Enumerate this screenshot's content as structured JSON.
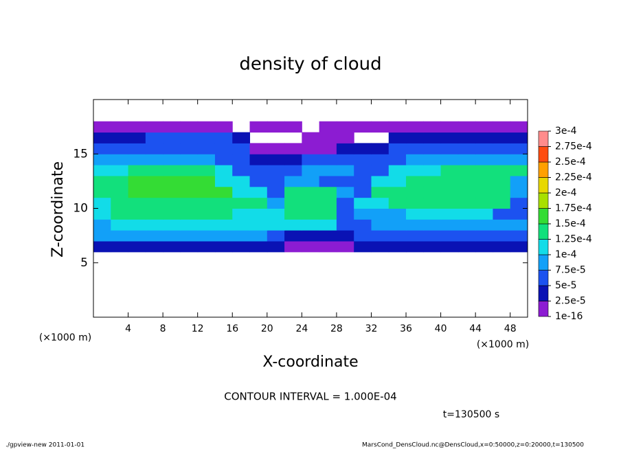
{
  "chart_data": {
    "type": "heatmap",
    "title": "density of cloud",
    "xlabel": "X-coordinate",
    "ylabel": "Z-coordinate",
    "xunit": "(×1000 m)",
    "yunit": "(×1000 m)",
    "contour_note": "CONTOUR INTERVAL = 1.000E-04",
    "time_label": "t=130500 s",
    "footer_left": "./gpview-new  2011-01-01",
    "footer_right": "MarsCond_DensCloud.nc@DensCloud,x=0:50000,z=0:20000,t=130500",
    "xlim": [
      0,
      50
    ],
    "ylim": [
      0,
      20
    ],
    "xticks": [
      4,
      8,
      12,
      16,
      20,
      24,
      28,
      32,
      36,
      40,
      44,
      48
    ],
    "yticks": [
      5,
      10,
      15
    ],
    "x": [
      1,
      3,
      5,
      7,
      9,
      11,
      13,
      15,
      17,
      19,
      21,
      23,
      25,
      27,
      29,
      31,
      33,
      35,
      37,
      39,
      41,
      43,
      45,
      47,
      49
    ],
    "z": [
      6.5,
      7.5,
      8.5,
      9.5,
      10.5,
      11.5,
      12.5,
      13.5,
      14.5,
      15.5,
      16.5,
      17.5
    ],
    "values": [
      [
        3.5e-05,
        3.5e-05,
        3.5e-05,
        3.5e-05,
        3.5e-05,
        3.5e-05,
        3.5e-05,
        3.5e-05,
        3.5e-05,
        3.5e-05,
        3.5e-05,
        1e-05,
        1e-05,
        1e-05,
        1e-05,
        3.5e-05,
        3.5e-05,
        3.5e-05,
        3.5e-05,
        3.5e-05,
        3.5e-05,
        3.5e-05,
        3.5e-05,
        3.5e-05,
        3.5e-05
      ],
      [
        9e-05,
        9e-05,
        9e-05,
        9e-05,
        9e-05,
        9e-05,
        9e-05,
        9e-05,
        9e-05,
        9e-05,
        6e-05,
        3.5e-05,
        3.5e-05,
        3.5e-05,
        3.5e-05,
        6e-05,
        6e-05,
        6e-05,
        6e-05,
        6e-05,
        6e-05,
        6e-05,
        6e-05,
        6e-05,
        6e-05
      ],
      [
        9e-05,
        0.00011,
        0.00011,
        0.00011,
        0.00011,
        0.00011,
        0.00011,
        0.00011,
        0.00011,
        0.00011,
        0.00011,
        0.00011,
        0.00011,
        0.00011,
        6e-05,
        6e-05,
        9e-05,
        9e-05,
        9e-05,
        9e-05,
        9e-05,
        9e-05,
        9e-05,
        9e-05,
        9e-05
      ],
      [
        0.00011,
        0.00014,
        0.00014,
        0.00014,
        0.00014,
        0.00014,
        0.00014,
        0.00014,
        0.00011,
        0.00011,
        0.00011,
        0.00014,
        0.00014,
        0.00014,
        6e-05,
        9e-05,
        9e-05,
        9e-05,
        0.00011,
        0.00011,
        0.00011,
        0.00011,
        0.00011,
        6e-05,
        6e-05
      ],
      [
        0.00011,
        0.00014,
        0.00014,
        0.00014,
        0.00014,
        0.00014,
        0.00014,
        0.00014,
        0.00014,
        0.00014,
        9e-05,
        0.00014,
        0.00014,
        0.00014,
        6e-05,
        0.00011,
        0.00011,
        0.00014,
        0.00014,
        0.00014,
        0.00014,
        0.00014,
        0.00014,
        0.00014,
        6e-05
      ],
      [
        0.00014,
        0.00014,
        0.00016,
        0.00016,
        0.00016,
        0.00016,
        0.00016,
        0.00016,
        0.00011,
        0.00011,
        6e-05,
        0.00014,
        0.00014,
        0.00014,
        9e-05,
        6e-05,
        0.00014,
        0.00014,
        0.00014,
        0.00014,
        0.00014,
        0.00014,
        0.00014,
        0.00014,
        9e-05
      ],
      [
        0.00014,
        0.00014,
        0.00016,
        0.00016,
        0.00016,
        0.00016,
        0.00016,
        0.00011,
        0.00011,
        6e-05,
        6e-05,
        9e-05,
        9e-05,
        6e-05,
        6e-05,
        6e-05,
        0.00011,
        0.00011,
        0.00014,
        0.00014,
        0.00014,
        0.00014,
        0.00014,
        0.00014,
        9e-05
      ],
      [
        0.00011,
        0.00011,
        0.00014,
        0.00014,
        0.00014,
        0.00014,
        0.00014,
        0.00011,
        6e-05,
        6e-05,
        6e-05,
        6e-05,
        9e-05,
        9e-05,
        9e-05,
        6e-05,
        6e-05,
        0.00011,
        0.00011,
        0.00011,
        0.00014,
        0.00014,
        0.00014,
        0.00014,
        0.00014
      ],
      [
        9e-05,
        9e-05,
        9e-05,
        9e-05,
        9e-05,
        9e-05,
        9e-05,
        6e-05,
        6e-05,
        3.5e-05,
        3.5e-05,
        3.5e-05,
        6e-05,
        6e-05,
        6e-05,
        6e-05,
        6e-05,
        6e-05,
        9e-05,
        9e-05,
        9e-05,
        9e-05,
        9e-05,
        9e-05,
        9e-05
      ],
      [
        6e-05,
        6e-05,
        6e-05,
        6e-05,
        6e-05,
        6e-05,
        6e-05,
        6e-05,
        6e-05,
        1e-05,
        1e-05,
        1e-05,
        1e-05,
        1e-05,
        3.5e-05,
        3.5e-05,
        3.5e-05,
        6e-05,
        6e-05,
        6e-05,
        6e-05,
        6e-05,
        6e-05,
        6e-05,
        6e-05
      ],
      [
        3.5e-05,
        3.5e-05,
        3.5e-05,
        6e-05,
        6e-05,
        6e-05,
        6e-05,
        6e-05,
        3.5e-05,
        0,
        0,
        0,
        1e-05,
        1e-05,
        1e-05,
        0,
        0,
        3.5e-05,
        3.5e-05,
        3.5e-05,
        3.5e-05,
        3.5e-05,
        3.5e-05,
        3.5e-05,
        3.5e-05
      ],
      [
        1e-05,
        1e-05,
        1e-05,
        1e-05,
        1e-05,
        1e-05,
        1e-05,
        1e-05,
        0,
        1e-05,
        1e-05,
        1e-05,
        0,
        1e-05,
        1e-05,
        1e-05,
        1e-05,
        1e-05,
        1e-05,
        1e-05,
        1e-05,
        1e-05,
        1e-05,
        1e-05,
        1e-05
      ]
    ],
    "levels": [
      {
        "value": 1e-16,
        "label": "1e-16"
      },
      {
        "value": 2.5e-05,
        "label": "2.5e-5"
      },
      {
        "value": 5e-05,
        "label": "5e-5"
      },
      {
        "value": 7.5e-05,
        "label": "7.5e-5"
      },
      {
        "value": 0.0001,
        "label": "1e-4"
      },
      {
        "value": 0.000125,
        "label": "1.25e-4"
      },
      {
        "value": 0.00015,
        "label": "1.5e-4"
      },
      {
        "value": 0.000175,
        "label": "1.75e-4"
      },
      {
        "value": 0.0002,
        "label": "2e-4"
      },
      {
        "value": 0.000225,
        "label": "2.25e-4"
      },
      {
        "value": 0.00025,
        "label": "2.5e-4"
      },
      {
        "value": 0.000275,
        "label": "2.75e-4"
      },
      {
        "value": 0.0003,
        "label": "3e-4"
      }
    ],
    "colors": [
      "#8c1cd2",
      "#0a12b4",
      "#1c52f0",
      "#12a0f8",
      "#12dce8",
      "#12e07c",
      "#34dc34",
      "#a8e000",
      "#e8d800",
      "#ffa000",
      "#ff4c10",
      "#ff8c8c"
    ]
  }
}
